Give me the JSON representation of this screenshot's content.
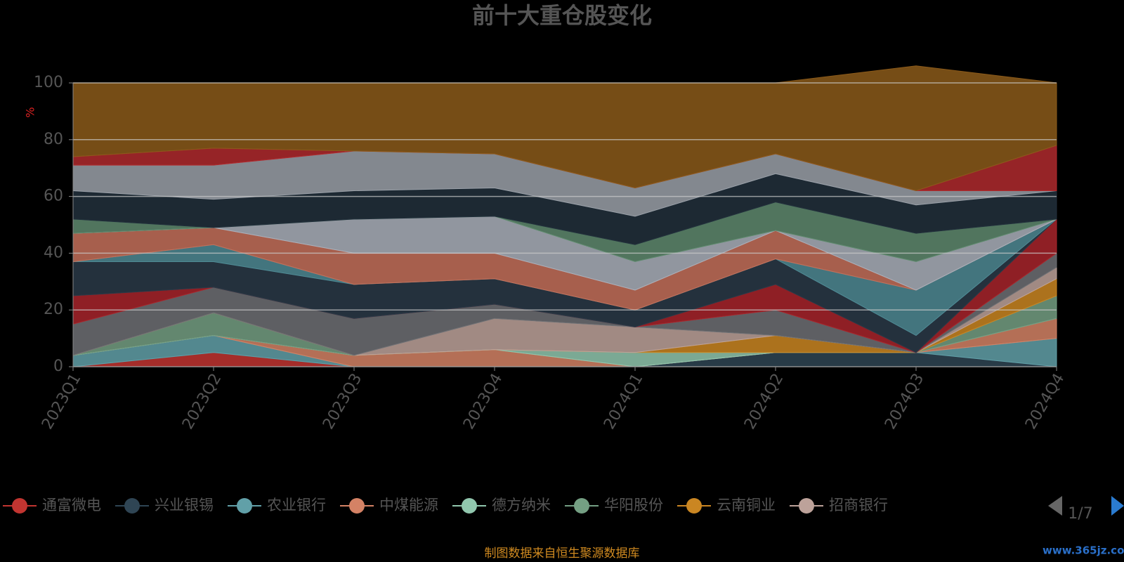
{
  "chart_data": {
    "type": "stacked_area",
    "title": "前十大重仓股变化",
    "y_label": "%",
    "categories": [
      "2023Q1",
      "2023Q2",
      "2023Q3",
      "2023Q4",
      "2024Q1",
      "2024Q2",
      "2024Q3",
      "2024Q4"
    ],
    "ylim": [
      0,
      100
    ],
    "yticks": [
      0,
      20,
      40,
      60,
      80,
      100
    ],
    "grid": true,
    "series": [
      {
        "name": "通富微电",
        "color": "#c23531",
        "values": [
          0,
          5,
          0,
          0,
          0,
          0,
          0,
          0
        ]
      },
      {
        "name": "兴业银锡",
        "color": "#2f4554",
        "values": [
          0,
          0,
          0,
          0,
          0,
          5,
          5,
          0
        ]
      },
      {
        "name": "农业银行",
        "color": "#61a0a8",
        "values": [
          4,
          6,
          0,
          0,
          0,
          0,
          0,
          10
        ]
      },
      {
        "name": "中煤能源",
        "color": "#d48265",
        "values": [
          0,
          0,
          4,
          6,
          0,
          0,
          0,
          7
        ]
      },
      {
        "name": "德方纳米",
        "color": "#91c7ae",
        "values": [
          0,
          0,
          0,
          0,
          5,
          0,
          0,
          0
        ]
      },
      {
        "name": "华阳股份",
        "color": "#749f83",
        "values": [
          0,
          8,
          0,
          0,
          0,
          0,
          0,
          8
        ]
      },
      {
        "name": "云南铜业",
        "color": "#ca8622",
        "values": [
          0,
          0,
          0,
          0,
          0,
          6,
          0,
          6
        ]
      },
      {
        "name": "招商银行",
        "color": "#bda29a",
        "values": [
          0,
          0,
          0,
          11,
          9,
          0,
          0,
          4
        ]
      },
      {
        "color": "#6e7074",
        "values": [
          11,
          9,
          13,
          5,
          0,
          9,
          0,
          5
        ]
      },
      {
        "color": "#a8252b",
        "values": [
          10,
          0,
          0,
          0,
          0,
          9,
          0,
          12
        ]
      },
      {
        "color": "#2a3a48",
        "values": [
          12,
          9,
          12,
          9,
          6,
          9,
          6,
          0
        ]
      },
      {
        "color": "#4f8a94",
        "values": [
          0,
          6,
          0,
          0,
          0,
          0,
          16,
          0
        ]
      },
      {
        "color": "#c4705a",
        "values": [
          10,
          6,
          11,
          9,
          7,
          10,
          0,
          0
        ]
      },
      {
        "color": "#aab0bb",
        "values": [
          0,
          0,
          12,
          13,
          10,
          0,
          10,
          0
        ]
      },
      {
        "color": "#5f8a6e",
        "values": [
          5,
          0,
          0,
          0,
          6,
          10,
          10,
          0
        ]
      },
      {
        "color": "#22303c",
        "values": [
          10,
          10,
          10,
          10,
          10,
          10,
          10,
          10
        ]
      },
      {
        "color": "#9aa0a8",
        "values": [
          9,
          12,
          14,
          12,
          10,
          7,
          5,
          0
        ]
      },
      {
        "color": "#b02a2e",
        "values": [
          3,
          6,
          0,
          0,
          0,
          0,
          0,
          16
        ]
      },
      {
        "color": "#8b5a1a",
        "values": [
          26,
          23,
          24,
          25,
          37,
          25,
          44,
          22
        ]
      }
    ],
    "legend_page": "1/7",
    "source": "制图数据来自恒生聚源数据库",
    "watermark": "www.365jz.com"
  }
}
